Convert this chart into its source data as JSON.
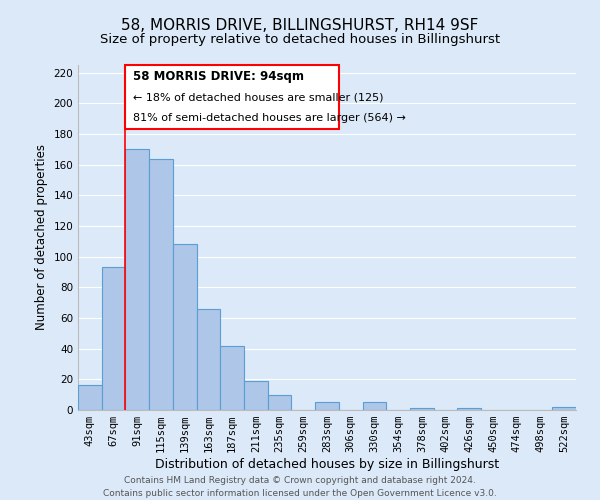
{
  "title": "58, MORRIS DRIVE, BILLINGSHURST, RH14 9SF",
  "subtitle": "Size of property relative to detached houses in Billingshurst",
  "xlabel": "Distribution of detached houses by size in Billingshurst",
  "ylabel": "Number of detached properties",
  "bar_labels": [
    "43sqm",
    "67sqm",
    "91sqm",
    "115sqm",
    "139sqm",
    "163sqm",
    "187sqm",
    "211sqm",
    "235sqm",
    "259sqm",
    "283sqm",
    "306sqm",
    "330sqm",
    "354sqm",
    "378sqm",
    "402sqm",
    "426sqm",
    "450sqm",
    "474sqm",
    "498sqm",
    "522sqm"
  ],
  "bar_values": [
    16,
    93,
    170,
    164,
    108,
    66,
    42,
    19,
    10,
    0,
    5,
    0,
    5,
    0,
    1,
    0,
    1,
    0,
    0,
    0,
    2
  ],
  "bar_color": "#aec6e8",
  "bar_edge_color": "#5a9fd4",
  "background_color": "#dce9f8",
  "plot_background": "#dce9f8",
  "ylim": [
    0,
    225
  ],
  "yticks": [
    0,
    20,
    40,
    60,
    80,
    100,
    120,
    140,
    160,
    180,
    200,
    220
  ],
  "red_line_index": 2,
  "annotation_box_text_line1": "58 MORRIS DRIVE: 94sqm",
  "annotation_box_text_line2": "← 18% of detached houses are smaller (125)",
  "annotation_box_text_line3": "81% of semi-detached houses are larger (564) →",
  "footer_line1": "Contains HM Land Registry data © Crown copyright and database right 2024.",
  "footer_line2": "Contains public sector information licensed under the Open Government Licence v3.0.",
  "grid_color": "#ffffff",
  "title_fontsize": 11,
  "subtitle_fontsize": 9.5,
  "tick_fontsize": 7.5,
  "ylabel_fontsize": 8.5,
  "xlabel_fontsize": 9,
  "footer_fontsize": 6.5,
  "ann_fontsize_title": 8.5,
  "ann_fontsize_body": 8.0
}
